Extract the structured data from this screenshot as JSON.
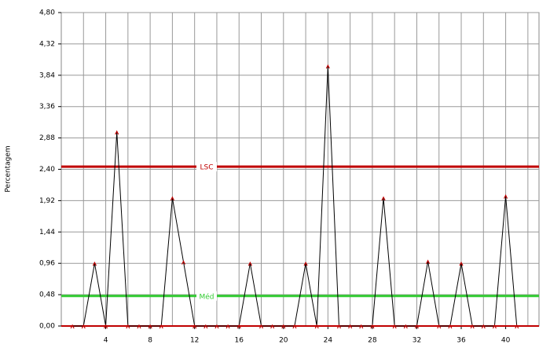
{
  "chart_data": {
    "type": "line",
    "y_label": "Percentagem",
    "x": [
      1,
      2,
      3,
      4,
      5,
      6,
      7,
      8,
      9,
      10,
      11,
      12,
      13,
      14,
      15,
      16,
      17,
      18,
      19,
      20,
      21,
      22,
      23,
      24,
      25,
      26,
      27,
      28,
      29,
      30,
      31,
      32,
      33,
      34,
      35,
      36,
      37,
      38,
      39,
      40,
      41
    ],
    "series": [
      {
        "color": "#000000",
        "marker_color": "#c00000",
        "values": [
          0,
          0,
          0.96,
          0,
          2.97,
          0,
          0,
          0,
          0,
          1.96,
          0.98,
          0,
          0,
          0,
          0,
          0,
          0.96,
          0,
          0,
          0,
          0,
          0.96,
          0,
          3.98,
          0,
          0,
          0,
          0,
          1.96,
          0,
          0,
          0,
          0.99,
          0,
          0,
          0.96,
          0,
          0,
          0,
          1.99,
          0
        ]
      }
    ],
    "control_lines": [
      {
        "name": "LSC",
        "value": 2.44,
        "color": "#c00000"
      },
      {
        "name": "Méd",
        "value": 0.46,
        "color": "#33cc33"
      },
      {
        "value": 0,
        "color": "#c00000"
      }
    ],
    "xlim": [
      0,
      43
    ],
    "ylim": [
      0,
      4.8
    ],
    "xticks": [
      4,
      8,
      12,
      16,
      20,
      24,
      28,
      32,
      36,
      40
    ],
    "xminorticks": [
      2,
      6,
      10,
      14,
      18,
      22,
      26,
      30,
      34,
      38,
      42
    ],
    "yticks": [
      {
        "value": 0,
        "label": "0,00"
      },
      {
        "value": 0.48,
        "label": "0,48"
      },
      {
        "value": 0.96,
        "label": "0,96"
      },
      {
        "value": 1.44,
        "label": "1,44"
      },
      {
        "value": 1.92,
        "label": "1,92"
      },
      {
        "value": 2.4,
        "label": "2,40"
      },
      {
        "value": 2.88,
        "label": "2,88"
      },
      {
        "value": 3.36,
        "label": "3,36"
      },
      {
        "value": 3.84,
        "label": "3,84"
      },
      {
        "value": 4.32,
        "label": "4,32"
      },
      {
        "value": 4.8,
        "label": "4,80"
      }
    ],
    "grid": true
  }
}
